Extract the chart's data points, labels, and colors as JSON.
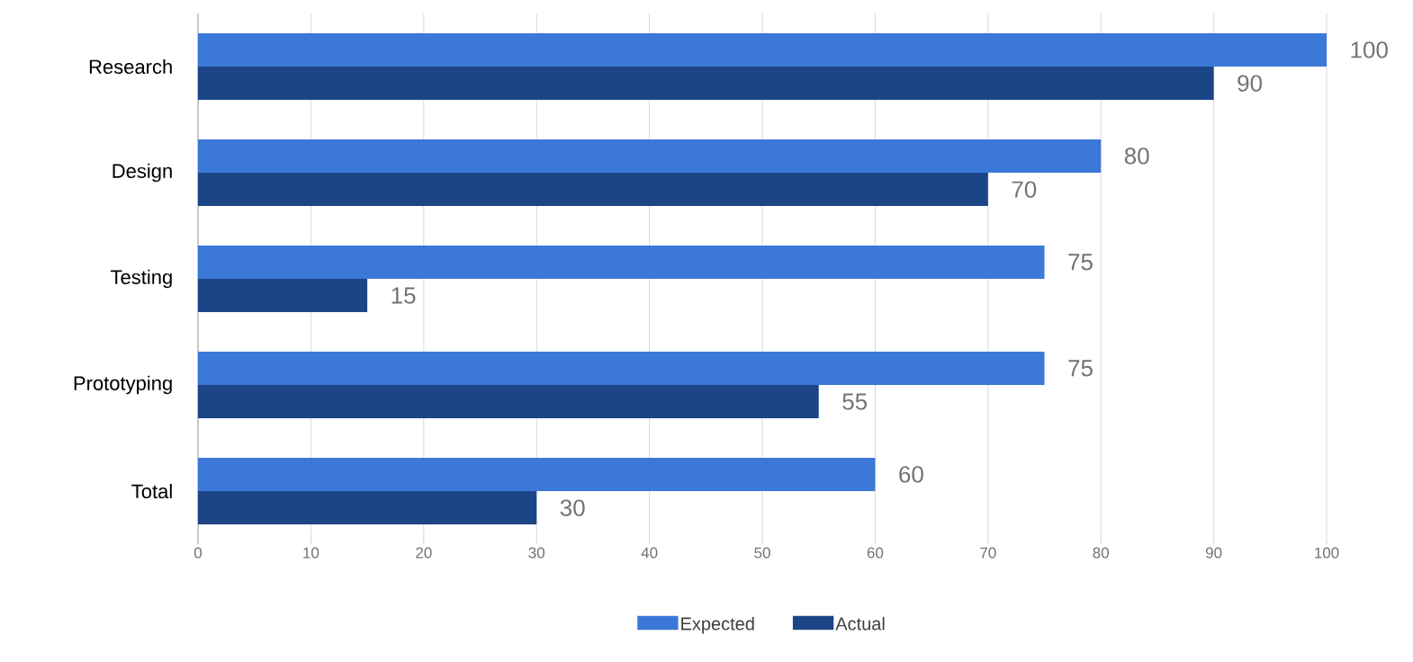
{
  "chart_data": {
    "type": "bar",
    "orientation": "horizontal",
    "categories": [
      "Research",
      "Design",
      "Testing",
      "Prototyping",
      "Total"
    ],
    "series": [
      {
        "name": "Expected",
        "color": "#3c78d8",
        "values": [
          100,
          80,
          75,
          75,
          60
        ]
      },
      {
        "name": "Actual",
        "color": "#1c4587",
        "values": [
          90,
          70,
          15,
          55,
          30
        ]
      }
    ],
    "xlim": [
      0,
      100
    ],
    "xticks": [
      0,
      10,
      20,
      30,
      40,
      50,
      60,
      70,
      80,
      90,
      100
    ],
    "grid": "x",
    "legend": "bottom",
    "data_labels": true
  }
}
